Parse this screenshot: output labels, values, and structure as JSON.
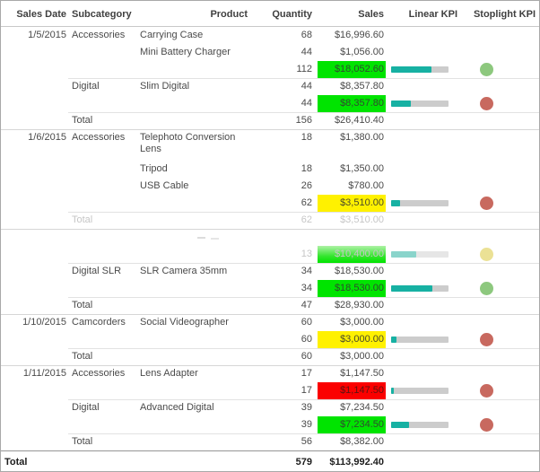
{
  "table": {
    "columns": [
      {
        "label": "Sales Date"
      },
      {
        "label": "Subcategory"
      },
      {
        "label": "Product"
      },
      {
        "label": "Quantity"
      },
      {
        "label": "Sales"
      },
      {
        "label": "Linear KPI"
      },
      {
        "label": "Stoplight KPI"
      }
    ],
    "rows": [
      {
        "date": "1/5/2015",
        "subcategory": "Accessories",
        "product": "Carrying Case",
        "quantity": "68",
        "sales": "$16,996.60",
        "type": "detail"
      },
      {
        "product": "Mini Battery Charger",
        "quantity": "44",
        "sales": "$1,056.00",
        "type": "detail"
      },
      {
        "quantity": "112",
        "sales": "$18,052.60",
        "bg": "green",
        "kpi": 70,
        "light": "green",
        "type": "subtotal"
      },
      {
        "subcategory": "Digital",
        "product": "Slim Digital",
        "quantity": "44",
        "sales": "$8,357.80",
        "type": "detail",
        "top": "partial"
      },
      {
        "quantity": "44",
        "sales": "$8,357.80",
        "bg": "green",
        "kpi": 35,
        "light": "red",
        "type": "subtotal"
      },
      {
        "subcategory": "Total",
        "quantity": "156",
        "sales": "$26,410.40",
        "type": "total",
        "top": "partial"
      },
      {
        "date": "1/6/2015",
        "subcategory": "Accessories",
        "product": "Telephoto Conversion Lens",
        "quantity": "18",
        "sales": "$1,380.00",
        "type": "detail",
        "top": "full",
        "tall": true
      },
      {
        "product": "Tripod",
        "quantity": "18",
        "sales": "$1,350.00",
        "type": "detail"
      },
      {
        "product": "USB Cable",
        "quantity": "26",
        "sales": "$780.00",
        "type": "detail"
      },
      {
        "quantity": "62",
        "sales": "$3,510.00",
        "bg": "yellow",
        "kpi": 16,
        "light": "red",
        "type": "subtotal"
      },
      {
        "subcategory": "Total",
        "quantity": "62",
        "sales": "$3,510.00",
        "type": "total",
        "top": "partial",
        "faded": true
      },
      {
        "type": "blank",
        "top": "full"
      },
      {
        "quantity": "13",
        "sales": "$10,400.00",
        "bg": "green-fade",
        "kpi": 44,
        "light": "yellow",
        "type": "subtotal",
        "faded": true
      },
      {
        "subcategory": "Digital SLR",
        "product": "SLR Camera 35mm",
        "quantity": "34",
        "sales": "$18,530.00",
        "type": "detail",
        "top": "partial"
      },
      {
        "quantity": "34",
        "sales": "$18,530.00",
        "bg": "green",
        "kpi": 72,
        "light": "green",
        "type": "subtotal"
      },
      {
        "subcategory": "Total",
        "quantity": "47",
        "sales": "$28,930.00",
        "type": "total",
        "top": "partial"
      },
      {
        "date": "1/10/2015",
        "subcategory": "Camcorders",
        "product": "Social Videographer",
        "quantity": "60",
        "sales": "$3,000.00",
        "type": "detail",
        "top": "full"
      },
      {
        "quantity": "60",
        "sales": "$3,000.00",
        "bg": "yellow",
        "kpi": 10,
        "light": "red",
        "type": "subtotal"
      },
      {
        "subcategory": "Total",
        "quantity": "60",
        "sales": "$3,000.00",
        "type": "total",
        "top": "partial"
      },
      {
        "date": "1/11/2015",
        "subcategory": "Accessories",
        "product": "Lens Adapter",
        "quantity": "17",
        "sales": "$1,147.50",
        "type": "detail",
        "top": "full"
      },
      {
        "quantity": "17",
        "sales": "$1,147.50",
        "bg": "red",
        "kpi": 5,
        "light": "red",
        "type": "subtotal"
      },
      {
        "subcategory": "Digital",
        "product": "Advanced Digital",
        "quantity": "39",
        "sales": "$7,234.50",
        "type": "detail",
        "top": "partial"
      },
      {
        "quantity": "39",
        "sales": "$7,234.50",
        "bg": "green",
        "kpi": 31,
        "light": "red",
        "type": "subtotal"
      },
      {
        "subcategory": "Total",
        "quantity": "56",
        "sales": "$8,382.00",
        "type": "total",
        "top": "partial"
      }
    ],
    "grand_total": {
      "label": "Total",
      "quantity": "579",
      "sales": "$113,992.40"
    }
  },
  "colors": {
    "kpi_bar_fill": "#17b1a3",
    "kpi_bar_track": "#cccccc",
    "stoplight_green": "#8dc87e",
    "stoplight_red": "#c8695f",
    "stoplight_yellow": "#e8dc82",
    "sales_cell_green": "#00e400",
    "sales_cell_yellow": "#fff100",
    "sales_cell_red": "#fb0000"
  }
}
